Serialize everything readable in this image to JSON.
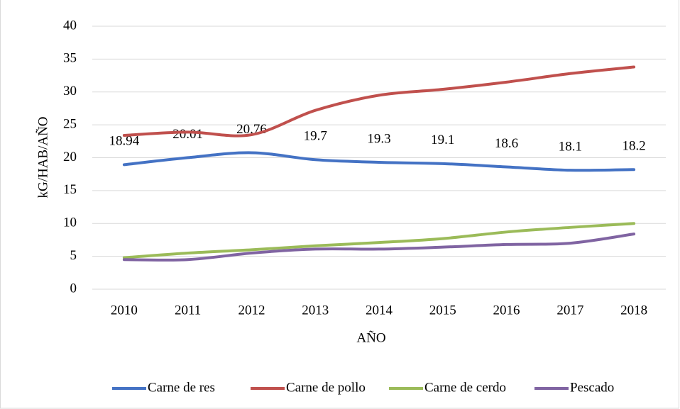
{
  "chart_data": {
    "type": "line",
    "x_label": "AÑO",
    "y_label": "kG/HAB/AÑO",
    "categories": [
      "2010",
      "2011",
      "2012",
      "2013",
      "2014",
      "2015",
      "2016",
      "2017",
      "2018"
    ],
    "series": [
      {
        "name": "Carne de res",
        "color": "#4472c4",
        "values": [
          18.94,
          20.01,
          20.76,
          19.7,
          19.3,
          19.1,
          18.6,
          18.1,
          18.2
        ],
        "data_labels": true
      },
      {
        "name": "Carne de pollo",
        "color": "#c0504d",
        "values": [
          23.4,
          23.9,
          23.5,
          27.2,
          29.5,
          30.4,
          31.5,
          32.8,
          33.8
        ]
      },
      {
        "name": "Carne de cerdo",
        "color": "#9bbb59",
        "values": [
          4.8,
          5.5,
          6.0,
          6.6,
          7.1,
          7.7,
          8.7,
          9.4,
          10.0
        ]
      },
      {
        "name": "Pescado",
        "color": "#8064a2",
        "values": [
          4.5,
          4.5,
          5.5,
          6.1,
          6.1,
          6.4,
          6.8,
          7.0,
          8.4
        ]
      }
    ],
    "ylim": [
      0,
      40
    ],
    "yticks": [
      0,
      5,
      10,
      15,
      20,
      25,
      30,
      35,
      40
    ],
    "grid": true,
    "smooth": true,
    "legend": "bottom"
  }
}
